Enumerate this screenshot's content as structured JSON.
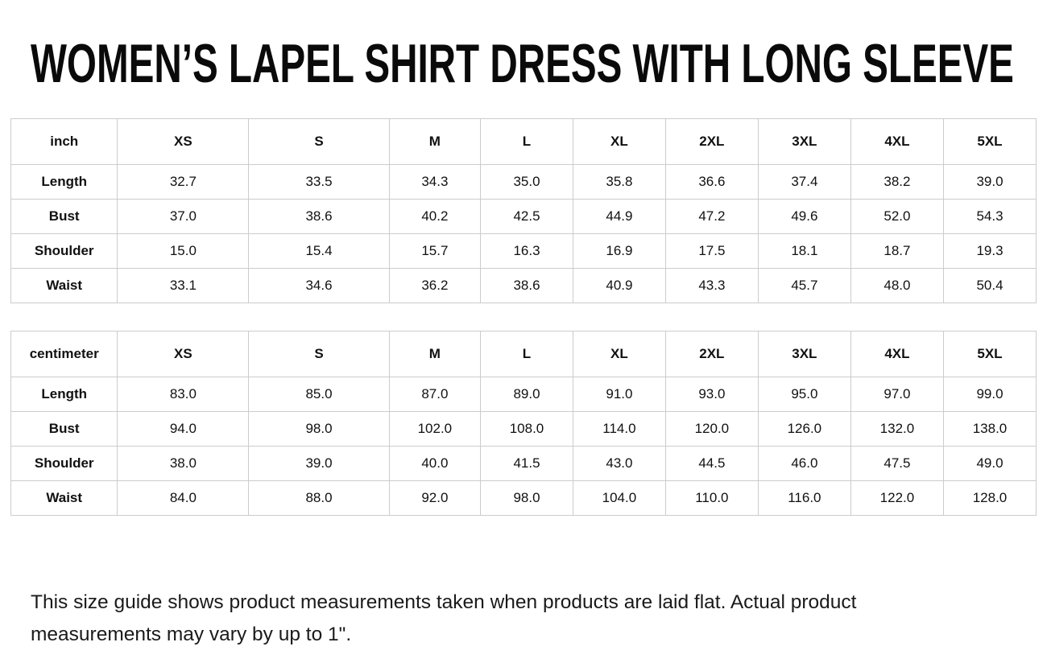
{
  "title": "WOMEN’S LAPEL SHIRT DRESS WITH LONG SLEEVE",
  "colors": {
    "table_border": "#cccccc",
    "text": "#111111"
  },
  "tables": [
    {
      "unit_label": "inch",
      "columns": [
        "XS",
        "S",
        "M",
        "L",
        "XL",
        "2XL",
        "3XL",
        "4XL",
        "5XL"
      ],
      "rows": [
        {
          "label": "Length",
          "values": [
            "32.7",
            "33.5",
            "34.3",
            "35.0",
            "35.8",
            "36.6",
            "37.4",
            "38.2",
            "39.0"
          ]
        },
        {
          "label": "Bust",
          "values": [
            "37.0",
            "38.6",
            "40.2",
            "42.5",
            "44.9",
            "47.2",
            "49.6",
            "52.0",
            "54.3"
          ]
        },
        {
          "label": "Shoulder",
          "values": [
            "15.0",
            "15.4",
            "15.7",
            "16.3",
            "16.9",
            "17.5",
            "18.1",
            "18.7",
            "19.3"
          ]
        },
        {
          "label": "Waist",
          "values": [
            "33.1",
            "34.6",
            "36.2",
            "38.6",
            "40.9",
            "43.3",
            "45.7",
            "48.0",
            "50.4"
          ]
        }
      ]
    },
    {
      "unit_label": "centimeter",
      "columns": [
        "XS",
        "S",
        "M",
        "L",
        "XL",
        "2XL",
        "3XL",
        "4XL",
        "5XL"
      ],
      "rows": [
        {
          "label": "Length",
          "values": [
            "83.0",
            "85.0",
            "87.0",
            "89.0",
            "91.0",
            "93.0",
            "95.0",
            "97.0",
            "99.0"
          ]
        },
        {
          "label": "Bust",
          "values": [
            "94.0",
            "98.0",
            "102.0",
            "108.0",
            "114.0",
            "120.0",
            "126.0",
            "132.0",
            "138.0"
          ]
        },
        {
          "label": "Shoulder",
          "values": [
            "38.0",
            "39.0",
            "40.0",
            "41.5",
            "43.0",
            "44.5",
            "46.0",
            "47.5",
            "49.0"
          ]
        },
        {
          "label": "Waist",
          "values": [
            "84.0",
            "88.0",
            "92.0",
            "98.0",
            "104.0",
            "110.0",
            "116.0",
            "122.0",
            "128.0"
          ]
        }
      ]
    }
  ],
  "footnote": {
    "lines": [
      "This size guide shows product measurements taken when products are laid flat. Actual product",
      "measurements may vary by up to 1\"."
    ]
  }
}
